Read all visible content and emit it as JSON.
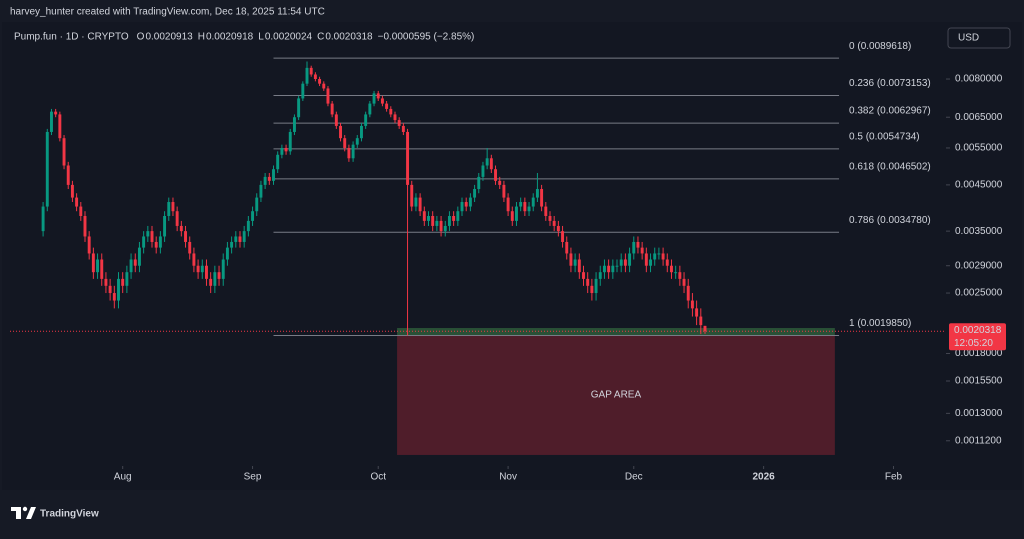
{
  "header": {
    "attribution": "harvey_hunter created with TradingView.com, Dec 18, 2025 11:54 UTC",
    "symbol": "Pump.fun · 1D · CRYPTO",
    "ohlc": [
      {
        "key": "O",
        "value": "0.0020913"
      },
      {
        "key": "H",
        "value": "0.0020918"
      },
      {
        "key": "L",
        "value": "0.0020024"
      },
      {
        "key": "C",
        "value": "0.0020318"
      }
    ],
    "change": "−0.0000595 (−2.85%)",
    "currency": "USD"
  },
  "footer": {
    "logo": "TradingView"
  },
  "chart_data": {
    "type": "candlestick",
    "log_scale": true,
    "grid": false,
    "up_color": "#089981",
    "down_color": "#f23645",
    "xlim": [
      -7.9,
      214.1
    ],
    "ylim": [
      0.000998,
      0.01073
    ],
    "xticks": [
      {
        "value": 19,
        "label": "Aug"
      },
      {
        "value": 50,
        "label": "Sep"
      },
      {
        "value": 80,
        "label": "Oct"
      },
      {
        "value": 111,
        "label": "Nov"
      },
      {
        "value": 141,
        "label": "Dec"
      },
      {
        "value": 172,
        "label": "2026"
      },
      {
        "value": 203,
        "label": "Feb"
      }
    ],
    "yticks": [
      {
        "value": 0.008,
        "label": "0.0080000"
      },
      {
        "value": 0.0065,
        "label": "0.0065000"
      },
      {
        "value": 0.0055,
        "label": "0.0055000"
      },
      {
        "value": 0.0045,
        "label": "0.0045000"
      },
      {
        "value": 0.0035,
        "label": "0.0035000"
      },
      {
        "value": 0.0029,
        "label": "0.0029000"
      },
      {
        "value": 0.0025,
        "label": "0.0025000"
      },
      {
        "value": 0.0018,
        "label": "0.0018000"
      },
      {
        "value": 0.00155,
        "label": "0.0015500"
      },
      {
        "value": 0.0013,
        "label": "0.0013000"
      },
      {
        "value": 0.00112,
        "label": "0.0011200"
      }
    ],
    "last_price": {
      "value": 0.0020318,
      "label": "0.0020318",
      "countdown": "12:05:20",
      "color": "#f23645"
    },
    "fib": {
      "x_range": [
        55,
        190
      ],
      "color": "#787b86",
      "levels": [
        {
          "label": "0 (0.0089618)",
          "value": 0.0089618
        },
        {
          "label": "0.236 (0.0073153)",
          "value": 0.0073153
        },
        {
          "label": "0.382 (0.0062967)",
          "value": 0.0062967
        },
        {
          "label": "0.5 (0.0054734)",
          "value": 0.0054734
        },
        {
          "label": "0.618 (0.0046502)",
          "value": 0.0046502
        },
        {
          "label": "0.786 (0.0034780)",
          "value": 0.003478
        },
        {
          "label": "1 (0.0019850)",
          "value": 0.001985
        }
      ]
    },
    "zones": [
      {
        "x": [
          84.5,
          189
        ],
        "y": [
          0.001037,
          0.00199
        ],
        "color": "#5a1f2b",
        "label": "GAP AREA",
        "label_color": "#f23645"
      },
      {
        "x": [
          84.5,
          189
        ],
        "y": [
          0.001986,
          0.002067
        ],
        "color": "#2e5a3a"
      }
    ],
    "candles": [
      [
        0.0035,
        0.0041,
        0.0034,
        0.004
      ],
      [
        0.004,
        0.0061,
        0.0039,
        0.006
      ],
      [
        0.006,
        0.0068,
        0.0059,
        0.0067
      ],
      [
        0.0067,
        0.0068,
        0.0065,
        0.0066
      ],
      [
        0.0066,
        0.0067,
        0.0057,
        0.0058
      ],
      [
        0.0058,
        0.0059,
        0.0049,
        0.005
      ],
      [
        0.005,
        0.0051,
        0.0044,
        0.0045
      ],
      [
        0.0045,
        0.0046,
        0.0041,
        0.0042
      ],
      [
        0.0042,
        0.0043,
        0.0039,
        0.004
      ],
      [
        0.004,
        0.0041,
        0.0037,
        0.0038
      ],
      [
        0.0038,
        0.0039,
        0.0033,
        0.0034
      ],
      [
        0.0034,
        0.0035,
        0.003,
        0.0031
      ],
      [
        0.0031,
        0.0032,
        0.0027,
        0.0028
      ],
      [
        0.0028,
        0.0031,
        0.0027,
        0.003
      ],
      [
        0.003,
        0.0031,
        0.0026,
        0.0027
      ],
      [
        0.0027,
        0.0028,
        0.0025,
        0.0026
      ],
      [
        0.0026,
        0.0027,
        0.0024,
        0.0025
      ],
      [
        0.0025,
        0.0026,
        0.0023,
        0.0024
      ],
      [
        0.0024,
        0.0028,
        0.0023,
        0.0027
      ],
      [
        0.0027,
        0.0028,
        0.0025,
        0.0026
      ],
      [
        0.0026,
        0.0029,
        0.0025,
        0.0028
      ],
      [
        0.0028,
        0.0031,
        0.0027,
        0.003
      ],
      [
        0.003,
        0.0031,
        0.0028,
        0.0029
      ],
      [
        0.0029,
        0.0033,
        0.0028,
        0.0032
      ],
      [
        0.0032,
        0.0035,
        0.0031,
        0.0034
      ],
      [
        0.0034,
        0.0036,
        0.0033,
        0.0035
      ],
      [
        0.0035,
        0.0036,
        0.0032,
        0.0033
      ],
      [
        0.0033,
        0.0034,
        0.0031,
        0.0032
      ],
      [
        0.0032,
        0.0035,
        0.0031,
        0.0034
      ],
      [
        0.0034,
        0.0039,
        0.0033,
        0.0038
      ],
      [
        0.0038,
        0.0042,
        0.0037,
        0.0041
      ],
      [
        0.0041,
        0.0042,
        0.0038,
        0.0039
      ],
      [
        0.0039,
        0.004,
        0.0035,
        0.0036
      ],
      [
        0.0036,
        0.0037,
        0.0034,
        0.0035
      ],
      [
        0.0035,
        0.0036,
        0.0032,
        0.0033
      ],
      [
        0.0033,
        0.0034,
        0.003,
        0.0031
      ],
      [
        0.0031,
        0.0032,
        0.0028,
        0.0029
      ],
      [
        0.0029,
        0.003,
        0.0027,
        0.0028
      ],
      [
        0.0028,
        0.003,
        0.0027,
        0.0029
      ],
      [
        0.0029,
        0.003,
        0.0026,
        0.0027
      ],
      [
        0.0027,
        0.0028,
        0.0025,
        0.0026
      ],
      [
        0.0026,
        0.0029,
        0.0025,
        0.0028
      ],
      [
        0.0028,
        0.0029,
        0.0026,
        0.0027
      ],
      [
        0.0027,
        0.0031,
        0.0026,
        0.003
      ],
      [
        0.003,
        0.0033,
        0.0029,
        0.0032
      ],
      [
        0.0032,
        0.0034,
        0.0031,
        0.0033
      ],
      [
        0.0033,
        0.0035,
        0.0032,
        0.0034
      ],
      [
        0.0034,
        0.0035,
        0.0032,
        0.0033
      ],
      [
        0.0033,
        0.0036,
        0.0032,
        0.0035
      ],
      [
        0.0035,
        0.0038,
        0.0034,
        0.0037
      ],
      [
        0.0037,
        0.004,
        0.0036,
        0.0039
      ],
      [
        0.0039,
        0.0043,
        0.0038,
        0.0042
      ],
      [
        0.0042,
        0.0046,
        0.0041,
        0.0045
      ],
      [
        0.0045,
        0.0048,
        0.0044,
        0.0047
      ],
      [
        0.0047,
        0.0048,
        0.0045,
        0.0046
      ],
      [
        0.0046,
        0.005,
        0.0045,
        0.0049
      ],
      [
        0.0049,
        0.0054,
        0.0048,
        0.0053
      ],
      [
        0.0053,
        0.0056,
        0.0052,
        0.0055
      ],
      [
        0.0055,
        0.0056,
        0.0053,
        0.0054
      ],
      [
        0.0054,
        0.0061,
        0.0053,
        0.006
      ],
      [
        0.006,
        0.0066,
        0.0059,
        0.0065
      ],
      [
        0.0065,
        0.0073,
        0.0064,
        0.0072
      ],
      [
        0.0072,
        0.0079,
        0.0071,
        0.0078
      ],
      [
        0.0078,
        0.0088,
        0.0077,
        0.0085
      ],
      [
        0.0085,
        0.0086,
        0.0081,
        0.0082
      ],
      [
        0.0082,
        0.0083,
        0.0079,
        0.008
      ],
      [
        0.008,
        0.0081,
        0.0077,
        0.0078
      ],
      [
        0.0078,
        0.0079,
        0.0075,
        0.0076
      ],
      [
        0.0076,
        0.0077,
        0.0069,
        0.007
      ],
      [
        0.007,
        0.0071,
        0.0065,
        0.0066
      ],
      [
        0.0066,
        0.0067,
        0.0061,
        0.0062
      ],
      [
        0.0062,
        0.0063,
        0.0057,
        0.0058
      ],
      [
        0.0058,
        0.0059,
        0.0054,
        0.0055
      ],
      [
        0.0055,
        0.0056,
        0.0051,
        0.0052
      ],
      [
        0.0052,
        0.0057,
        0.0051,
        0.0056
      ],
      [
        0.0056,
        0.0059,
        0.0055,
        0.0058
      ],
      [
        0.0058,
        0.0063,
        0.0057,
        0.0062
      ],
      [
        0.0062,
        0.0067,
        0.0061,
        0.0066
      ],
      [
        0.0066,
        0.0071,
        0.0065,
        0.007
      ],
      [
        0.007,
        0.0075,
        0.0069,
        0.0074
      ],
      [
        0.0074,
        0.0075,
        0.0071,
        0.0072
      ],
      [
        0.0072,
        0.0073,
        0.0069,
        0.007
      ],
      [
        0.007,
        0.0071,
        0.0067,
        0.0068
      ],
      [
        0.0068,
        0.0069,
        0.0065,
        0.0066
      ],
      [
        0.0066,
        0.0067,
        0.0063,
        0.0064
      ],
      [
        0.0064,
        0.0065,
        0.0061,
        0.0062
      ],
      [
        0.0062,
        0.0063,
        0.0059,
        0.006
      ],
      [
        0.006,
        0.0061,
        0.001985,
        0.0045
      ],
      [
        0.0045,
        0.0046,
        0.0039,
        0.004
      ],
      [
        0.004,
        0.0043,
        0.0039,
        0.0042
      ],
      [
        0.0042,
        0.0043,
        0.0038,
        0.0039
      ],
      [
        0.0039,
        0.004,
        0.0036,
        0.0037
      ],
      [
        0.0037,
        0.0039,
        0.0036,
        0.0038
      ],
      [
        0.0038,
        0.0039,
        0.0035,
        0.0036
      ],
      [
        0.0036,
        0.0038,
        0.0035,
        0.0037
      ],
      [
        0.0037,
        0.0038,
        0.0034,
        0.0035
      ],
      [
        0.0035,
        0.0037,
        0.0034,
        0.0036
      ],
      [
        0.0036,
        0.0039,
        0.0035,
        0.0038
      ],
      [
        0.0038,
        0.0039,
        0.0036,
        0.0037
      ],
      [
        0.0037,
        0.004,
        0.0036,
        0.0039
      ],
      [
        0.0039,
        0.0042,
        0.0038,
        0.0041
      ],
      [
        0.0041,
        0.0042,
        0.0039,
        0.004
      ],
      [
        0.004,
        0.0043,
        0.0039,
        0.0042
      ],
      [
        0.0042,
        0.0045,
        0.0041,
        0.0044
      ],
      [
        0.0044,
        0.0048,
        0.0043,
        0.0047
      ],
      [
        0.0047,
        0.0051,
        0.0046,
        0.005
      ],
      [
        0.005,
        0.0055,
        0.0049,
        0.0052
      ],
      [
        0.0052,
        0.0053,
        0.0048,
        0.0049
      ],
      [
        0.0049,
        0.005,
        0.0045,
        0.0046
      ],
      [
        0.0046,
        0.0047,
        0.0044,
        0.0045
      ],
      [
        0.0045,
        0.0046,
        0.0041,
        0.0042
      ],
      [
        0.0042,
        0.0043,
        0.0038,
        0.0039
      ],
      [
        0.0039,
        0.004,
        0.0036,
        0.0037
      ],
      [
        0.0037,
        0.0041,
        0.0036,
        0.004
      ],
      [
        0.004,
        0.0042,
        0.0039,
        0.0041
      ],
      [
        0.0041,
        0.0042,
        0.0038,
        0.0039
      ],
      [
        0.0039,
        0.0041,
        0.0038,
        0.004
      ],
      [
        0.004,
        0.0043,
        0.0039,
        0.0042
      ],
      [
        0.0042,
        0.0048,
        0.0041,
        0.0044
      ],
      [
        0.0044,
        0.0045,
        0.0039,
        0.004
      ],
      [
        0.004,
        0.0041,
        0.0037,
        0.0038
      ],
      [
        0.0038,
        0.0039,
        0.0036,
        0.0037
      ],
      [
        0.0037,
        0.0038,
        0.0035,
        0.0036
      ],
      [
        0.0036,
        0.0037,
        0.0034,
        0.0035
      ],
      [
        0.0035,
        0.0036,
        0.0032,
        0.0033
      ],
      [
        0.0033,
        0.0034,
        0.003,
        0.0031
      ],
      [
        0.0031,
        0.0032,
        0.0028,
        0.0029
      ],
      [
        0.0029,
        0.0031,
        0.0028,
        0.003
      ],
      [
        0.003,
        0.0031,
        0.0027,
        0.0028
      ],
      [
        0.0028,
        0.0029,
        0.0026,
        0.0027
      ],
      [
        0.0027,
        0.0028,
        0.0025,
        0.0026
      ],
      [
        0.0026,
        0.0027,
        0.0024,
        0.0025
      ],
      [
        0.0025,
        0.0028,
        0.0024,
        0.0027
      ],
      [
        0.0027,
        0.0029,
        0.0026,
        0.0028
      ],
      [
        0.0028,
        0.003,
        0.0027,
        0.0029
      ],
      [
        0.0029,
        0.003,
        0.0027,
        0.0028
      ],
      [
        0.0028,
        0.003,
        0.0027,
        0.0029
      ],
      [
        0.0029,
        0.003,
        0.0028,
        0.0029
      ],
      [
        0.0029,
        0.0031,
        0.0028,
        0.003
      ],
      [
        0.003,
        0.0031,
        0.0028,
        0.0029
      ],
      [
        0.0029,
        0.0032,
        0.0028,
        0.0031
      ],
      [
        0.0031,
        0.0034,
        0.003,
        0.0033
      ],
      [
        0.0033,
        0.0034,
        0.0031,
        0.0032
      ],
      [
        0.0032,
        0.0033,
        0.003,
        0.0031
      ],
      [
        0.0031,
        0.0032,
        0.0028,
        0.0029
      ],
      [
        0.0029,
        0.0031,
        0.0028,
        0.003
      ],
      [
        0.003,
        0.0032,
        0.0029,
        0.0031
      ],
      [
        0.0031,
        0.0032,
        0.003,
        0.0031
      ],
      [
        0.0031,
        0.0032,
        0.0029,
        0.003
      ],
      [
        0.003,
        0.0031,
        0.0028,
        0.0029
      ],
      [
        0.0029,
        0.003,
        0.0027,
        0.0028
      ],
      [
        0.0028,
        0.0029,
        0.0027,
        0.0028
      ],
      [
        0.0028,
        0.0029,
        0.0026,
        0.0027
      ],
      [
        0.0027,
        0.0028,
        0.0025,
        0.0026
      ],
      [
        0.0026,
        0.0027,
        0.0023,
        0.0024
      ],
      [
        0.0024,
        0.0025,
        0.0022,
        0.0023
      ],
      [
        0.0023,
        0.0024,
        0.0021,
        0.0022
      ],
      [
        0.0022,
        0.0023,
        0.002,
        0.0021
      ],
      [
        0.0020913,
        0.0020918,
        0.0020024,
        0.0020318
      ]
    ]
  }
}
